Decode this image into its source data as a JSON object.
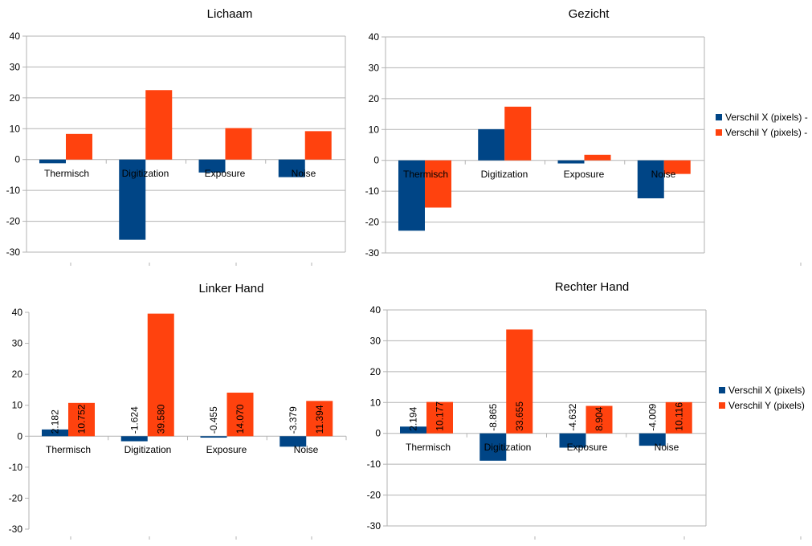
{
  "colors": {
    "x": "#004586",
    "y": "#ff420e",
    "grid": "#b3b3b3"
  },
  "chart_data": [
    {
      "type": "bar",
      "title": "Lichaam",
      "categories": [
        "Thermisch",
        "Digitization",
        "Exposure",
        "Noise"
      ],
      "ylim": [
        -30,
        40
      ],
      "yticks": [
        "40",
        "30",
        "20",
        "10",
        "0",
        "-10",
        "-20",
        "-30"
      ],
      "grid": true,
      "legend": "none",
      "series": [
        {
          "values": [
            -1.2,
            -26.0,
            -4.2,
            -5.7
          ]
        },
        {
          "values": [
            8.3,
            22.5,
            10.2,
            9.2
          ]
        }
      ],
      "data_labels": false
    },
    {
      "type": "bar",
      "title": "Gezicht",
      "categories": [
        "Thermisch",
        "Digitization",
        "Exposure",
        "Noise"
      ],
      "ylim": [
        -30,
        40
      ],
      "yticks": [
        "40",
        "30",
        "20",
        "10",
        "0",
        "-10",
        "-20",
        "-30"
      ],
      "grid": true,
      "legend": "right (clipped)",
      "series": [
        {
          "name": "Verschil X (pixels) -",
          "values": [
            -22.8,
            10.1,
            -1.0,
            -12.3
          ]
        },
        {
          "name": "Verschil Y (pixels) -",
          "values": [
            -15.3,
            17.4,
            1.8,
            -4.4
          ]
        }
      ],
      "data_labels": false
    },
    {
      "type": "bar",
      "title": "Linker Hand",
      "categories": [
        "Thermisch",
        "Digitization",
        "Exposure",
        "Noise"
      ],
      "ylim": [
        -30,
        40
      ],
      "yticks": [
        "40",
        "30",
        "20",
        "10",
        "0",
        "-10",
        "-20",
        "-30"
      ],
      "grid": false,
      "legend": "none",
      "series": [
        {
          "values": [
            2.182,
            -1.624,
            -0.455,
            -3.379
          ],
          "labels": [
            "2.182",
            "-1.624",
            "-0.455",
            "-3.379"
          ]
        },
        {
          "values": [
            10.752,
            39.58,
            14.07,
            11.394
          ],
          "labels": [
            "10.752",
            "39.580",
            "14.070",
            "11.394"
          ]
        }
      ],
      "data_labels": true
    },
    {
      "type": "bar",
      "title": "Rechter Hand",
      "categories": [
        "Thermisch",
        "Digitization",
        "Exposure",
        "Noise"
      ],
      "ylim": [
        -30,
        40
      ],
      "yticks": [
        "40",
        "30",
        "20",
        "10",
        "0",
        "-10",
        "-20",
        "-30"
      ],
      "grid": true,
      "legend": "right",
      "series": [
        {
          "name": "Verschil X (pixels)",
          "values": [
            2.194,
            -8.865,
            -4.632,
            -4.009
          ],
          "labels": [
            "2.194",
            "-8.865",
            "-4.632",
            "-4.009"
          ]
        },
        {
          "name": "Verschil Y (pixels)",
          "values": [
            10.177,
            33.655,
            8.904,
            10.116
          ],
          "labels": [
            "10.177",
            "33.655",
            "8.904",
            "10.116"
          ]
        }
      ],
      "data_labels": true
    }
  ]
}
